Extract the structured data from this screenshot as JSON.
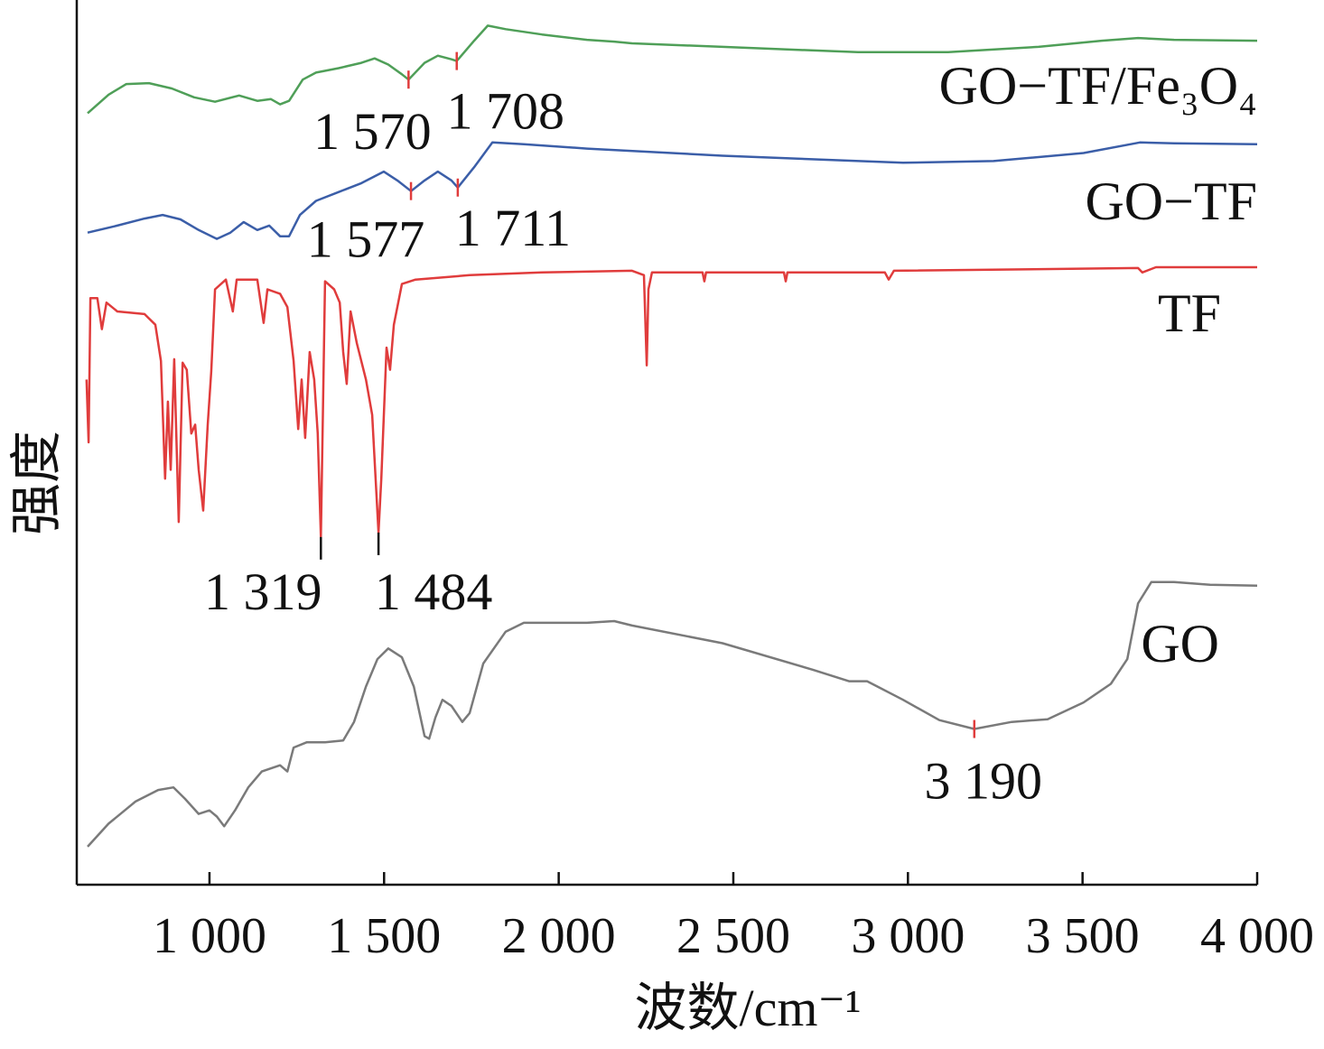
{
  "chart_data": {
    "type": "line",
    "xlabel": "波数/cm⁻¹",
    "ylabel": "强度",
    "xlim": [
      620,
      4000
    ],
    "ylim": [
      0,
      100
    ],
    "xticks": [
      {
        "value": 1000,
        "label": "1 000"
      },
      {
        "value": 1500,
        "label": "1 500"
      },
      {
        "value": 2000,
        "label": "2 000"
      },
      {
        "value": 2500,
        "label": "2 500"
      },
      {
        "value": 3000,
        "label": "3 000"
      },
      {
        "value": 3500,
        "label": "3 500"
      },
      {
        "value": 4000,
        "label": "4 000"
      }
    ],
    "series": [
      {
        "name": "GO−TF/Fe₃O₄",
        "color": "#4f9f58",
        "x": [
          651,
          711,
          762,
          827,
          892,
          956,
          1016,
          1085,
          1137,
          1176,
          1202,
          1228,
          1267,
          1305,
          1370,
          1435,
          1473,
          1512,
          1551,
          1570,
          1616,
          1654,
          1693,
          1708,
          1758,
          1797,
          1848,
          1952,
          2081,
          2159,
          2210,
          2469,
          2857,
          3115,
          3374,
          3555,
          3659,
          3762,
          4000
        ],
        "values": [
          87.2,
          89.3,
          90.5,
          90.6,
          90.0,
          89.0,
          88.5,
          89.2,
          88.6,
          88.8,
          88.2,
          88.6,
          91.0,
          91.8,
          92.3,
          92.9,
          93.4,
          92.7,
          91.6,
          91.0,
          92.9,
          93.7,
          93.3,
          93.1,
          95.4,
          97.1,
          96.7,
          96.1,
          95.5,
          95.3,
          95.1,
          94.7,
          94.1,
          94.1,
          94.7,
          95.4,
          95.7,
          95.5,
          95.4
        ]
      },
      {
        "name": "GO−TF",
        "color": "#3b5ea8",
        "x": [
          651,
          736,
          814,
          866,
          917,
          969,
          1021,
          1060,
          1098,
          1137,
          1171,
          1202,
          1228,
          1259,
          1305,
          1370,
          1435,
          1499,
          1538,
          1577,
          1616,
          1654,
          1693,
          1711,
          1758,
          1810,
          1900,
          2081,
          2469,
          2986,
          3245,
          3503,
          3664,
          3762,
          4000
        ],
        "values": [
          73.7,
          74.5,
          75.3,
          75.7,
          75.2,
          74.0,
          73.0,
          73.7,
          74.9,
          74.0,
          74.5,
          73.3,
          73.3,
          75.7,
          77.3,
          78.3,
          79.3,
          80.6,
          79.6,
          78.4,
          79.6,
          80.6,
          79.6,
          78.8,
          81.1,
          83.9,
          83.7,
          83.2,
          82.4,
          81.6,
          81.8,
          82.7,
          83.9,
          83.8,
          83.7
        ]
      },
      {
        "name": "TF",
        "color": "#e03c3c",
        "x": [
          648,
          654,
          659,
          679,
          692,
          705,
          736,
          814,
          845,
          861,
          873,
          881,
          889,
          899,
          912,
          923,
          935,
          948,
          959,
          969,
          982,
          995,
          1005,
          1016,
          1047,
          1067,
          1078,
          1137,
          1155,
          1166,
          1202,
          1223,
          1241,
          1254,
          1264,
          1274,
          1287,
          1300,
          1310,
          1319,
          1331,
          1357,
          1373,
          1383,
          1393,
          1404,
          1422,
          1448,
          1466,
          1484,
          1492,
          1507,
          1517,
          1528,
          1551,
          1590,
          1745,
          1952,
          2210,
          2244,
          2252,
          2257,
          2267,
          2412,
          2417,
          2422,
          2645,
          2650,
          2655,
          2934,
          2945,
          2960,
          3659,
          3671,
          3710,
          4000
        ],
        "values": [
          57.1,
          50.0,
          66.3,
          66.3,
          62.8,
          65.8,
          64.8,
          64.5,
          63.3,
          59.2,
          45.9,
          54.6,
          46.9,
          59.4,
          41.0,
          59.0,
          58.2,
          51.0,
          52.0,
          46.9,
          42.3,
          52.0,
          58.0,
          67.3,
          68.4,
          64.8,
          68.4,
          68.4,
          63.5,
          67.3,
          66.8,
          65.3,
          59.2,
          51.5,
          57.1,
          50.5,
          60.2,
          57.1,
          51.0,
          39.3,
          68.2,
          67.3,
          65.8,
          60.2,
          56.6,
          64.8,
          61.2,
          57.1,
          53.1,
          39.8,
          45.9,
          60.7,
          58.2,
          63.3,
          67.9,
          68.4,
          68.9,
          69.2,
          69.4,
          68.9,
          58.7,
          67.3,
          69.2,
          69.2,
          68.2,
          69.2,
          69.2,
          68.2,
          69.2,
          69.2,
          68.4,
          69.4,
          69.7,
          69.2,
          69.8,
          69.8
        ]
      },
      {
        "name": "GO",
        "color": "#7a7a7a",
        "x": [
          651,
          711,
          788,
          853,
          897,
          930,
          969,
          1000,
          1021,
          1042,
          1073,
          1111,
          1150,
          1202,
          1223,
          1241,
          1279,
          1331,
          1383,
          1414,
          1448,
          1481,
          1512,
          1551,
          1585,
          1616,
          1629,
          1647,
          1667,
          1693,
          1724,
          1745,
          1784,
          1848,
          1900,
          2081,
          2159,
          2210,
          2469,
          2728,
          2831,
          2883,
          2986,
          3090,
          3190,
          3297,
          3400,
          3503,
          3581,
          3628,
          3659,
          3697,
          3762,
          3865,
          4000
        ],
        "values": [
          4.3,
          6.9,
          9.4,
          10.7,
          11.0,
          9.7,
          8.0,
          8.4,
          7.7,
          6.6,
          8.4,
          11.0,
          12.8,
          13.5,
          12.8,
          15.5,
          16.1,
          16.1,
          16.3,
          18.4,
          22.4,
          25.5,
          26.7,
          25.7,
          22.4,
          16.8,
          16.5,
          18.9,
          20.9,
          20.2,
          18.4,
          19.4,
          25.0,
          28.6,
          29.6,
          29.6,
          29.8,
          29.3,
          27.3,
          24.3,
          23.0,
          23.0,
          20.9,
          18.6,
          17.6,
          18.4,
          18.7,
          20.6,
          22.7,
          25.5,
          31.8,
          34.2,
          34.2,
          33.9,
          33.8
        ]
      }
    ],
    "annotations": [
      {
        "text": "1 570",
        "x": 1570,
        "y": 91.0,
        "color": "#e03c3c"
      },
      {
        "text": "1 708",
        "x": 1708,
        "y": 93.1,
        "color": "#e03c3c"
      },
      {
        "text": "1 577",
        "x": 1577,
        "y": 78.4,
        "color": "#e03c3c"
      },
      {
        "text": "1 711",
        "x": 1711,
        "y": 78.8,
        "color": "#e03c3c"
      },
      {
        "text": "1 319",
        "x": 1319,
        "y": 39.3,
        "color": "#111111"
      },
      {
        "text": "1 484",
        "x": 1484,
        "y": 39.8,
        "color": "#111111"
      },
      {
        "text": "3 190",
        "x": 3190,
        "y": 17.6,
        "color": "#e03c3c"
      }
    ]
  }
}
